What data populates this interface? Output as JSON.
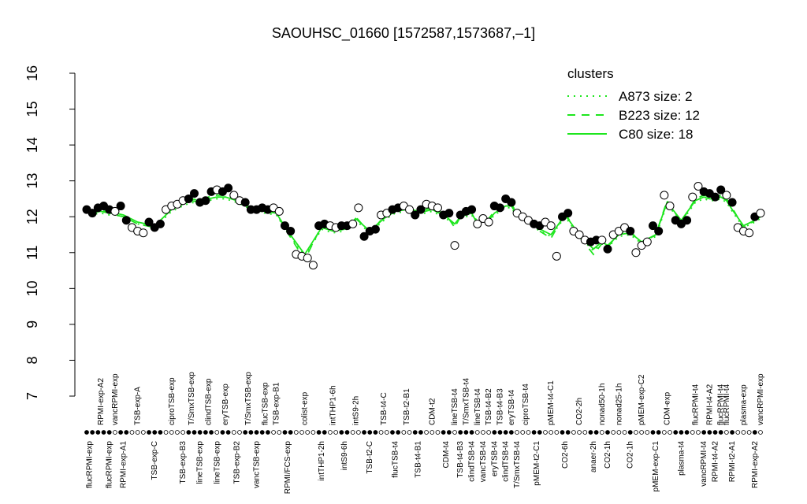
{
  "chart_data": {
    "type": "line",
    "title": "SAOUHSC_01660 [1572587,1573687,–1]",
    "ylim": [
      7,
      16
    ],
    "yticks": [
      7,
      8,
      9,
      10,
      11,
      12,
      13,
      14,
      15,
      16
    ],
    "legend_title": "clusters",
    "legend_position": "top-right",
    "color": "#1ee61e",
    "groups": [
      {
        "label": "flucRPMI-exp",
        "row": "bottom",
        "open": false,
        "values": [
          12.2,
          12.1
        ]
      },
      {
        "label": "RPMI-exp-A2",
        "row": "top",
        "open": false,
        "values": [
          12.25,
          12.3
        ]
      },
      {
        "label": "flucRPMI-exp",
        "row": "bottom",
        "open": false,
        "values": [
          12.2
        ]
      },
      {
        "label": "vancRPMI-exp",
        "row": "top",
        "open": true,
        "values": [
          12.15
        ]
      },
      {
        "label": "RPMI-exp-A1",
        "row": "bottom",
        "open": false,
        "values": [
          12.3,
          11.9
        ]
      },
      {
        "label": "TSB-exp-A",
        "row": "top",
        "open": true,
        "values": [
          11.7,
          11.6,
          11.55
        ]
      },
      {
        "label": "TSB-exp-C",
        "row": "bottom",
        "open": false,
        "values": [
          11.85,
          11.7,
          11.8
        ]
      },
      {
        "label": "ciproTSB-exp",
        "row": "top",
        "open": true,
        "values": [
          12.2,
          12.3,
          12.35
        ]
      },
      {
        "label": "TSB-exp-B3",
        "row": "bottom",
        "open": true,
        "values": [
          12.45
        ]
      },
      {
        "label": "T/SmxTSB-exp",
        "row": "top",
        "open": false,
        "values": [
          12.5,
          12.65
        ]
      },
      {
        "label": "lineTSB-exp",
        "row": "bottom",
        "open": false,
        "values": [
          12.4
        ]
      },
      {
        "label": "clindTSB-exp",
        "row": "top",
        "open": false,
        "values": [
          12.45,
          12.7
        ]
      },
      {
        "label": "lineTSB-exp",
        "row": "bottom",
        "open": true,
        "values": [
          12.75
        ]
      },
      {
        "label": "eryTSB-exp",
        "row": "top",
        "open": false,
        "values": [
          12.7,
          12.8
        ]
      },
      {
        "label": "TSB-exp-B2",
        "row": "bottom",
        "open": true,
        "values": [
          12.6,
          12.45
        ]
      },
      {
        "label": "T/SmxTSB-exp",
        "row": "top",
        "open": false,
        "values": [
          12.4,
          12.2
        ]
      },
      {
        "label": "vancTSB-exp",
        "row": "bottom",
        "open": false,
        "values": [
          12.2
        ]
      },
      {
        "label": "flucTSB-exp",
        "row": "top",
        "open": false,
        "values": [
          12.25,
          12.2
        ]
      },
      {
        "label": "TSB-exp-B1",
        "row": "top",
        "open": true,
        "values": [
          12.25,
          12.15
        ]
      },
      {
        "label": "RPMI/FCS-exp",
        "row": "bottom",
        "open": false,
        "values": [
          11.75,
          11.6
        ]
      },
      {
        "label": "colist-exp",
        "row": "top",
        "open": true,
        "values": [
          10.95,
          10.9,
          10.85,
          10.65
        ]
      },
      {
        "label": "intTHP1-2h",
        "row": "bottom",
        "open": false,
        "values": [
          11.75,
          11.8
        ]
      },
      {
        "label": "intTHP1-6h",
        "row": "top",
        "open": true,
        "values": [
          11.75,
          11.7
        ]
      },
      {
        "label": "intS9-6h",
        "row": "bottom",
        "open": false,
        "values": [
          11.75,
          11.75
        ]
      },
      {
        "label": "intS9-2h",
        "row": "top",
        "open": true,
        "values": [
          11.8,
          12.25
        ]
      },
      {
        "label": "TSB-t2-C",
        "row": "bottom",
        "open": false,
        "values": [
          11.45,
          11.6,
          11.65
        ]
      },
      {
        "label": "TSB-t4-C",
        "row": "top",
        "open": true,
        "values": [
          12.05,
          12.1
        ]
      },
      {
        "label": "flucTSB-t4",
        "row": "bottom",
        "open": false,
        "values": [
          12.2,
          12.25
        ]
      },
      {
        "label": "TSB-t2-B1",
        "row": "top",
        "open": true,
        "values": [
          12.3,
          12.2
        ]
      },
      {
        "label": "TSB-t4-B1",
        "row": "bottom",
        "open": false,
        "values": [
          12.05,
          12.2
        ]
      },
      {
        "label": "CDM-t2",
        "row": "top",
        "open": true,
        "values": [
          12.35,
          12.3,
          12.25
        ]
      },
      {
        "label": "CDM-t4",
        "row": "bottom",
        "open": false,
        "values": [
          12.05,
          12.1
        ]
      },
      {
        "label": "lineTSB-t4",
        "row": "top",
        "open": true,
        "values": [
          11.2
        ]
      },
      {
        "label": "TSB-t4-B3",
        "row": "bottom",
        "open": false,
        "values": [
          12.05
        ]
      },
      {
        "label": "T/SmxTSB-t4",
        "row": "top",
        "open": false,
        "values": [
          12.15
        ]
      },
      {
        "label": "clindTSB-t4",
        "row": "bottom",
        "open": false,
        "values": [
          12.2
        ]
      },
      {
        "label": "lineTSB-t4",
        "row": "top",
        "open": true,
        "values": [
          11.8
        ]
      },
      {
        "label": "vancTSB-t4",
        "row": "bottom",
        "open": true,
        "values": [
          11.95
        ]
      },
      {
        "label": "TSB-t4-B2",
        "row": "top",
        "open": true,
        "values": [
          11.85
        ]
      },
      {
        "label": "eryTSB-t4",
        "row": "bottom",
        "open": false,
        "values": [
          12.3
        ]
      },
      {
        "label": "TSB-t4-B3",
        "row": "top",
        "open": false,
        "values": [
          12.25
        ]
      },
      {
        "label": "clindTSB-t4",
        "row": "bottom",
        "open": false,
        "values": [
          12.5
        ]
      },
      {
        "label": "eryTSB-t4",
        "row": "top",
        "open": false,
        "values": [
          12.4
        ]
      },
      {
        "label": "T/SmxTSB-t4",
        "row": "bottom",
        "open": true,
        "values": [
          12.1
        ]
      },
      {
        "label": "ciproTSB-t4",
        "row": "top",
        "open": true,
        "values": [
          12.0,
          11.9
        ]
      },
      {
        "label": "pMEM-t2-C1",
        "row": "bottom",
        "open": false,
        "values": [
          11.8,
          11.75
        ]
      },
      {
        "label": "pMEM-t4-C1",
        "row": "top",
        "open": true,
        "values": [
          11.85,
          11.75,
          10.9
        ]
      },
      {
        "label": "CO2-6h",
        "row": "bottom",
        "open": false,
        "values": [
          12.0,
          12.1
        ]
      },
      {
        "label": "CO2-2h",
        "row": "top",
        "open": true,
        "values": [
          11.6,
          11.5,
          11.35
        ]
      },
      {
        "label": "anaer-2h",
        "row": "bottom",
        "open": false,
        "values": [
          11.3,
          11.35
        ]
      },
      {
        "label": "nonad50-1h",
        "row": "top",
        "open": true,
        "values": [
          11.35
        ]
      },
      {
        "label": "CO2-1h",
        "row": "bottom",
        "open": false,
        "values": [
          11.1
        ]
      },
      {
        "label": "nonad25-1h",
        "row": "top",
        "open": true,
        "values": [
          11.5,
          11.6,
          11.7
        ]
      },
      {
        "label": "CO2-1h",
        "row": "bottom",
        "open": false,
        "values": [
          11.6
        ]
      },
      {
        "label": "pMEM-exp-C2",
        "row": "top",
        "open": true,
        "values": [
          11.0,
          11.2,
          11.3
        ]
      },
      {
        "label": "pMEM-exp-C1",
        "row": "bottom",
        "open": false,
        "values": [
          11.75,
          11.6
        ]
      },
      {
        "label": "CDM-exp",
        "row": "top",
        "open": true,
        "values": [
          12.6,
          12.3
        ]
      },
      {
        "label": "plasma-t4",
        "row": "bottom",
        "open": false,
        "values": [
          11.9,
          11.8,
          11.9
        ]
      },
      {
        "label": "flucRPMI-t4",
        "row": "top",
        "open": true,
        "values": [
          12.55,
          12.85
        ]
      },
      {
        "label": "vancRPMI-t4",
        "row": "bottom",
        "open": false,
        "values": [
          12.7
        ]
      },
      {
        "label": "RPMI-t4-A2",
        "row": "top",
        "open": false,
        "values": [
          12.65
        ]
      },
      {
        "label": "RPMI-t4-A2",
        "row": "bottom",
        "open": false,
        "values": [
          12.55
        ]
      },
      {
        "label": "flucRPMI-t4",
        "row": "top",
        "open": false,
        "values": [
          12.75
        ]
      },
      {
        "label": "flucRPMI-t4",
        "row": "top",
        "open": true,
        "values": [
          12.6
        ]
      },
      {
        "label": "RPMI-t2-A1",
        "row": "bottom",
        "open": false,
        "values": [
          12.4
        ]
      },
      {
        "label": "plasma-exp",
        "row": "top",
        "open": true,
        "values": [
          11.7,
          11.6,
          11.55
        ]
      },
      {
        "label": "RPMI-exp-A2",
        "row": "bottom",
        "open": false,
        "values": [
          12.0
        ]
      },
      {
        "label": "vancRPMI-exp",
        "row": "top",
        "open": true,
        "values": [
          12.1
        ]
      }
    ],
    "series": [
      {
        "name": "A873 size: 2",
        "style": "dotted",
        "values": [
          12.05,
          12.1,
          12.05,
          12.05,
          12.0,
          11.8,
          11.7,
          12.15,
          12.3,
          12.4,
          12.35,
          12.45,
          12.5,
          12.5,
          12.4,
          12.25,
          12.15,
          12.1,
          12.05,
          11.55,
          10.9,
          11.65,
          11.55,
          11.6,
          11.9,
          11.55,
          11.9,
          12.1,
          12.15,
          12.05,
          12.15,
          11.95,
          11.75,
          11.95,
          12.0,
          12.05,
          11.75,
          11.9,
          11.85,
          12.05,
          12.15,
          12.25,
          12.25,
          12.0,
          11.9,
          11.65,
          11.45,
          12.0,
          11.45,
          11.05,
          11.25,
          11.15,
          11.45,
          11.5,
          11.25,
          11.45,
          12.35,
          11.85,
          12.4,
          12.5,
          12.45,
          12.45,
          12.5,
          12.4,
          12.15,
          11.7,
          11.85,
          11.95
        ]
      },
      {
        "name": "B223 size: 12",
        "style": "dashed",
        "values": [
          12.15,
          12.2,
          12.1,
          12.05,
          12.0,
          11.8,
          11.7,
          12.25,
          12.4,
          12.5,
          12.45,
          12.55,
          12.6,
          12.6,
          12.5,
          12.3,
          12.15,
          12.15,
          12.1,
          11.55,
          10.8,
          11.75,
          11.65,
          11.7,
          12.0,
          11.55,
          12.0,
          12.2,
          12.25,
          12.15,
          12.25,
          12.05,
          11.7,
          12.0,
          12.1,
          12.15,
          11.85,
          11.95,
          11.95,
          12.15,
          12.25,
          12.35,
          12.35,
          12.1,
          12.0,
          11.65,
          11.4,
          12.1,
          11.45,
          10.95,
          11.25,
          11.15,
          11.55,
          11.6,
          11.25,
          11.5,
          12.45,
          11.85,
          12.5,
          12.6,
          12.55,
          12.55,
          12.6,
          12.5,
          12.25,
          11.7,
          11.9,
          12.05
        ]
      },
      {
        "name": "C80 size: 18",
        "style": "solid",
        "values": [
          12.1,
          12.15,
          12.1,
          12.1,
          12.05,
          11.85,
          11.75,
          12.2,
          12.35,
          12.45,
          12.4,
          12.5,
          12.55,
          12.55,
          12.45,
          12.3,
          12.2,
          12.15,
          12.1,
          11.6,
          10.95,
          11.7,
          11.6,
          11.65,
          11.95,
          11.6,
          11.95,
          12.15,
          12.2,
          12.1,
          12.2,
          12.0,
          11.8,
          12.0,
          12.05,
          12.1,
          11.8,
          11.95,
          11.9,
          12.1,
          12.2,
          12.3,
          12.3,
          12.05,
          11.95,
          11.7,
          11.5,
          12.05,
          11.5,
          11.1,
          11.3,
          11.2,
          11.5,
          11.55,
          11.3,
          11.5,
          12.4,
          11.9,
          12.45,
          12.55,
          12.5,
          12.5,
          12.55,
          12.45,
          12.2,
          11.75,
          11.9,
          12.0
        ]
      }
    ]
  }
}
